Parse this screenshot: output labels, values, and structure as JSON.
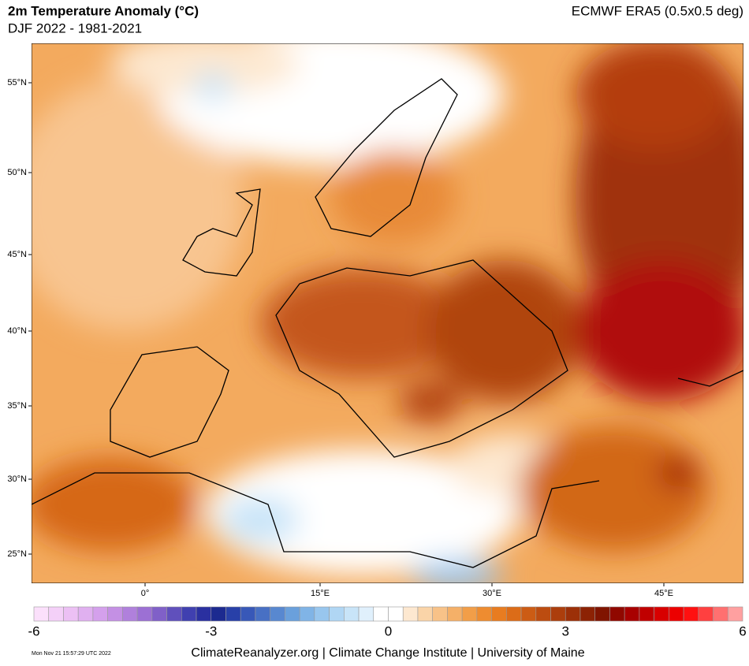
{
  "header": {
    "title": "2m Temperature Anomaly (°C)",
    "subtitle": "DJF 2022 - 1981-2021",
    "dataset": "ECMWF ERA5 (0.5x0.5 deg)"
  },
  "map": {
    "lat_labels": [
      "55°N",
      "50°N",
      "45°N",
      "40°N",
      "35°N",
      "30°N",
      "25°N"
    ],
    "lon_labels": [
      "0°",
      "15°E",
      "30°E",
      "45°E"
    ]
  },
  "colorbar": {
    "range": [
      -6,
      6
    ],
    "ticks": [
      -6,
      -3,
      0,
      3,
      6
    ],
    "colors": [
      "#fbe0fb",
      "#f4d0f8",
      "#ecc0f4",
      "#e0b0f0",
      "#d4a0ec",
      "#c490e4",
      "#b080dc",
      "#9c70d4",
      "#8060c8",
      "#6050bc",
      "#4040b0",
      "#2a30a0",
      "#1c2a90",
      "#2840a8",
      "#3858b8",
      "#4870c4",
      "#5888d0",
      "#6aa0dc",
      "#80b4e6",
      "#98c6ee",
      "#b0d6f4",
      "#c8e4f8",
      "#e0f0fc",
      "#ffffff",
      "#ffffff",
      "#fde8d0",
      "#fad4a8",
      "#f8c288",
      "#f5b068",
      "#f29e48",
      "#ee8c30",
      "#e87c20",
      "#dc6c18",
      "#cc5c14",
      "#bc4c10",
      "#ac3e0c",
      "#9c3008",
      "#8c2204",
      "#801400",
      "#900800",
      "#a80000",
      "#c00000",
      "#d80000",
      "#ec0000",
      "#ff1010",
      "#ff4040",
      "#ff7070",
      "#ffa0a0"
    ]
  },
  "footer": {
    "timestamp": "Mon Nov 21 15:57:29 UTC 2022",
    "credit": "ClimateReanalyzer.org | Climate Change Institute | University of Maine"
  }
}
